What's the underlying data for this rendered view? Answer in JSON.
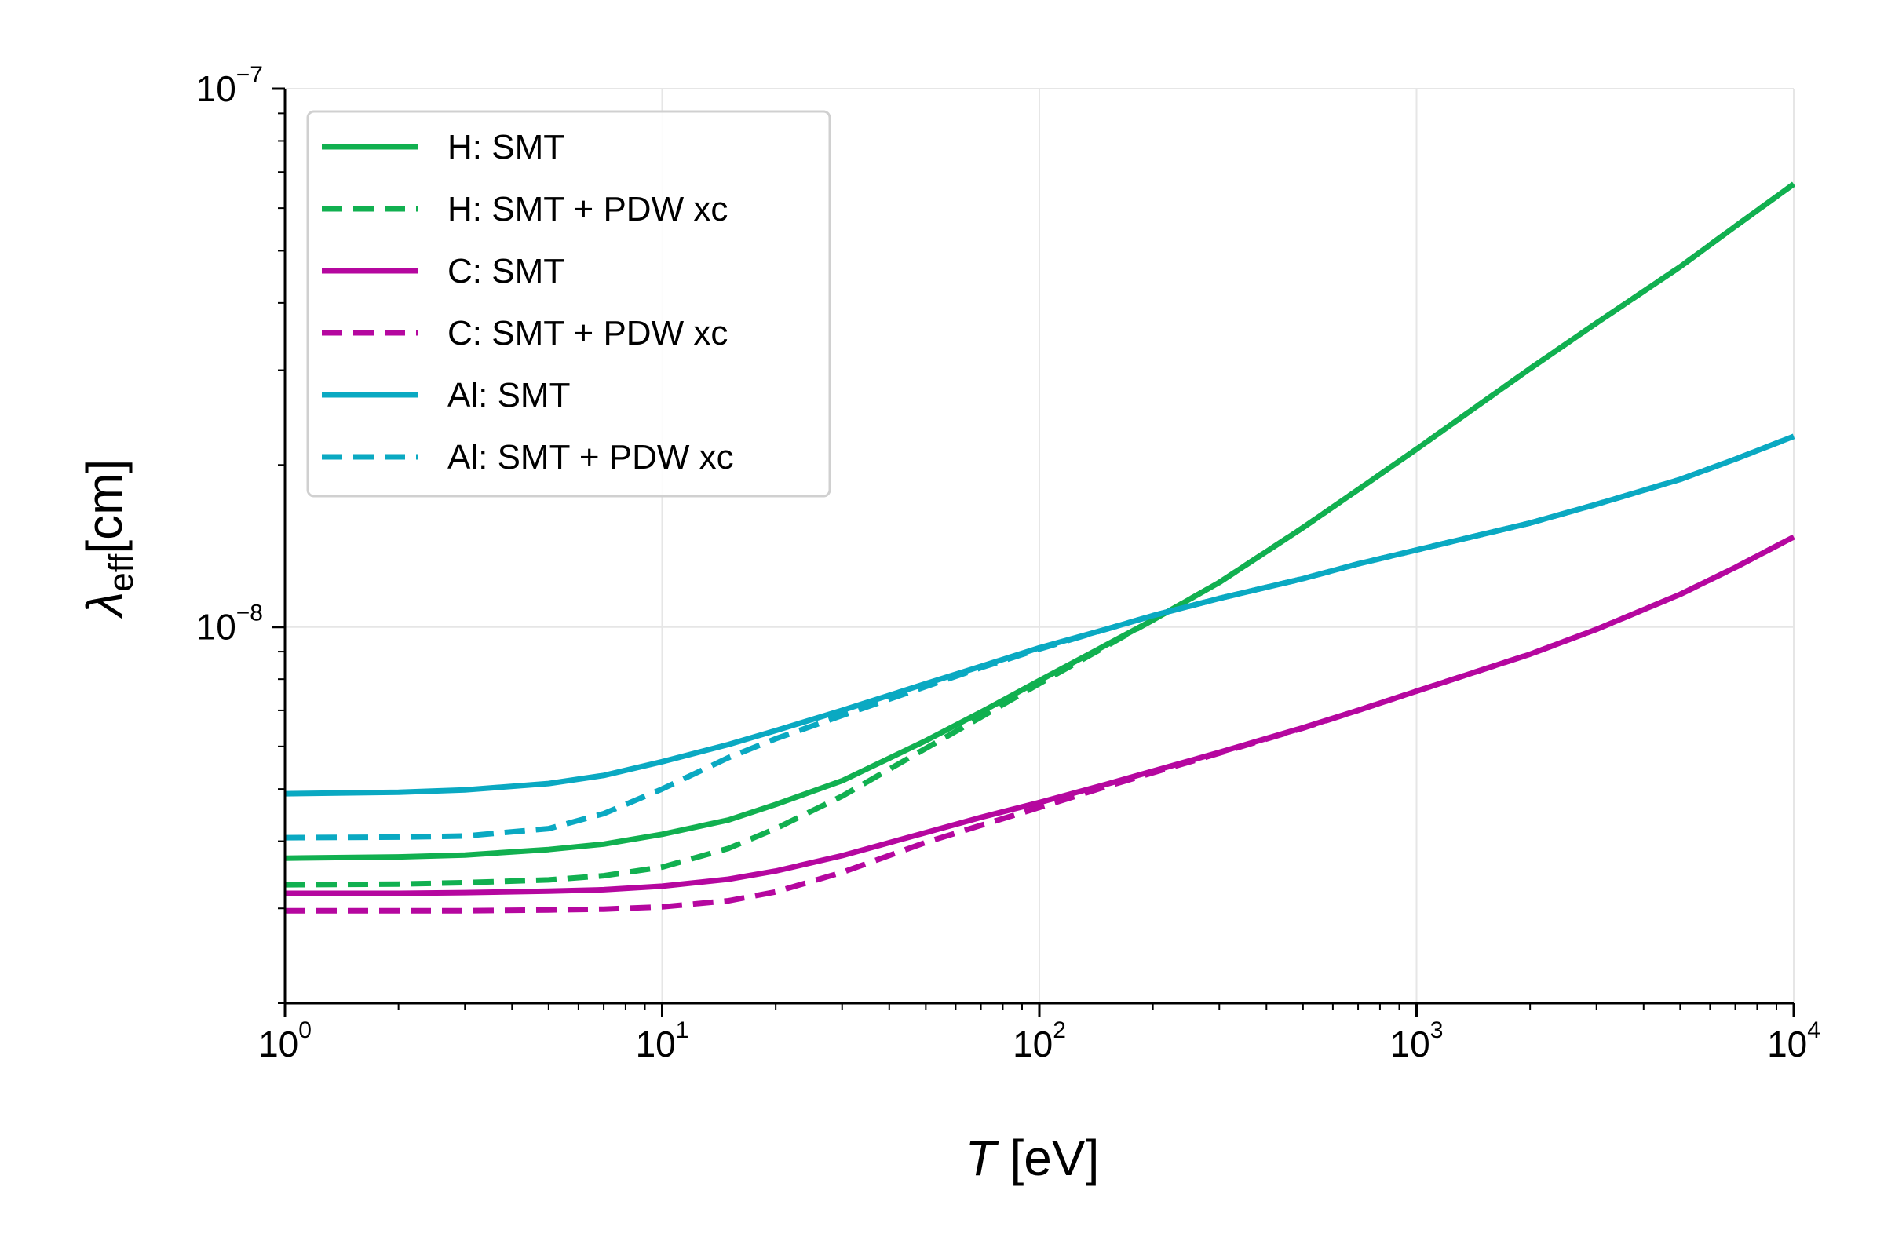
{
  "chart_data": {
    "type": "line",
    "x_scale": "log",
    "y_scale": "log",
    "xlim": [
      1,
      10000
    ],
    "ylim": [
      2e-09,
      1e-07
    ],
    "grid": true,
    "legend_position": "upper-left",
    "xlabel": {
      "symbol": "T",
      "unit": " [eV]"
    },
    "ylabel": {
      "symbol": "λ",
      "sub": "eff",
      "unit": "[cm]"
    },
    "x_ticks": [
      {
        "value": 1,
        "base": "10",
        "exp": "0"
      },
      {
        "value": 10,
        "base": "10",
        "exp": "1"
      },
      {
        "value": 100,
        "base": "10",
        "exp": "2"
      },
      {
        "value": 1000,
        "base": "10",
        "exp": "3"
      },
      {
        "value": 10000,
        "base": "10",
        "exp": "4"
      }
    ],
    "y_ticks": [
      {
        "value": 1e-08,
        "base": "10",
        "exp": "−8"
      },
      {
        "value": 1e-07,
        "base": "10",
        "exp": "−7"
      }
    ],
    "x": [
      1,
      2,
      3,
      5,
      7,
      10,
      15,
      20,
      30,
      50,
      70,
      100,
      150,
      200,
      300,
      500,
      700,
      1000,
      2000,
      3000,
      5000,
      7000,
      10000
    ],
    "series": [
      {
        "name": "H: SMT",
        "color": "#11b050",
        "dash": "solid",
        "values": [
          3.72e-09,
          3.74e-09,
          3.77e-09,
          3.86e-09,
          3.95e-09,
          4.12e-09,
          4.38e-09,
          4.68e-09,
          5.18e-09,
          6.15e-09,
          6.95e-09,
          7.95e-09,
          9.25e-09,
          1.03e-08,
          1.21e-08,
          1.53e-08,
          1.8e-08,
          2.14e-08,
          3.02e-08,
          3.67e-08,
          4.67e-08,
          5.55e-08,
          6.65e-08
        ]
      },
      {
        "name": "H: SMT + PDW xc",
        "color": "#11b050",
        "dash": "dashed",
        "values": [
          3.32e-09,
          3.33e-09,
          3.35e-09,
          3.39e-09,
          3.45e-09,
          3.58e-09,
          3.88e-09,
          4.22e-09,
          4.85e-09,
          5.95e-09,
          6.8e-09,
          7.85e-09,
          9.2e-09,
          1.03e-08,
          1.21e-08,
          1.53e-08,
          1.8e-08,
          2.14e-08,
          3.02e-08,
          3.67e-08,
          4.67e-08,
          5.55e-08,
          6.65e-08
        ]
      },
      {
        "name": "C: SMT",
        "color": "#b5079f",
        "dash": "solid",
        "values": [
          3.2e-09,
          3.2e-09,
          3.21e-09,
          3.23e-09,
          3.25e-09,
          3.3e-09,
          3.4e-09,
          3.52e-09,
          3.76e-09,
          4.15e-09,
          4.43e-09,
          4.72e-09,
          5.1e-09,
          5.4e-09,
          5.85e-09,
          6.5e-09,
          7e-09,
          7.6e-09,
          8.9e-09,
          9.9e-09,
          1.15e-08,
          1.29e-08,
          1.47e-08
        ]
      },
      {
        "name": "C: SMT + PDW xc",
        "color": "#b5079f",
        "dash": "dashed",
        "values": [
          2.97e-09,
          2.97e-09,
          2.97e-09,
          2.98e-09,
          2.99e-09,
          3.02e-09,
          3.1e-09,
          3.22e-09,
          3.5e-09,
          3.98e-09,
          4.28e-09,
          4.62e-09,
          5.05e-09,
          5.36e-09,
          5.83e-09,
          6.49e-09,
          7e-09,
          7.6e-09,
          8.9e-09,
          9.9e-09,
          1.15e-08,
          1.29e-08,
          1.47e-08
        ]
      },
      {
        "name": "Al: SMT",
        "color": "#0aa9c2",
        "dash": "solid",
        "values": [
          4.9e-09,
          4.93e-09,
          4.98e-09,
          5.12e-09,
          5.3e-09,
          5.62e-09,
          6.05e-09,
          6.42e-09,
          7e-09,
          7.85e-09,
          8.45e-09,
          9.15e-09,
          9.9e-09,
          1.05e-08,
          1.13e-08,
          1.23e-08,
          1.31e-08,
          1.39e-08,
          1.56e-08,
          1.69e-08,
          1.88e-08,
          2.05e-08,
          2.26e-08
        ]
      },
      {
        "name": "Al: SMT + PDW xc",
        "color": "#0aa9c2",
        "dash": "dashed",
        "values": [
          4.06e-09,
          4.07e-09,
          4.09e-09,
          4.22e-09,
          4.5e-09,
          5e-09,
          5.72e-09,
          6.2e-09,
          6.85e-09,
          7.75e-09,
          8.4e-09,
          9.1e-09,
          9.9e-09,
          1.05e-08,
          1.13e-08,
          1.23e-08,
          1.31e-08,
          1.39e-08,
          1.56e-08,
          1.69e-08,
          1.88e-08,
          2.05e-08,
          2.26e-08
        ]
      }
    ]
  }
}
